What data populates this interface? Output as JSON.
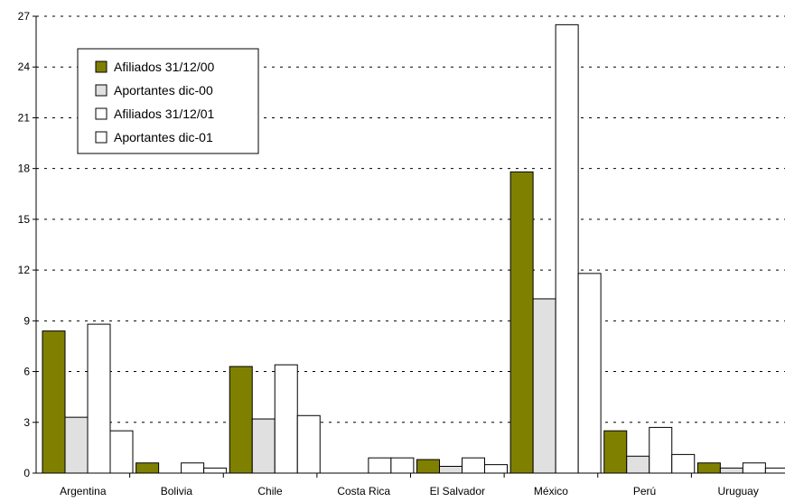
{
  "chart_data": {
    "type": "bar",
    "title": "",
    "xlabel": "",
    "ylabel": "",
    "categories": [
      "Argentina",
      "Bolivia",
      "Chile",
      "Costa Rica",
      "El Salvador",
      "México",
      "Perú",
      "Uruguay"
    ],
    "series": [
      {
        "name": "Afiliados 31/12/00",
        "color": "#808000",
        "values": [
          8.4,
          0.6,
          6.3,
          0,
          0.8,
          17.8,
          2.5,
          0.6
        ]
      },
      {
        "name": "Aportantes dic-00",
        "color": "#e0e0e0",
        "values": [
          3.3,
          0,
          3.2,
          0,
          0.4,
          10.3,
          1.0,
          0.3
        ]
      },
      {
        "name": "Afiliados 31/12/01",
        "color": "#ffffff",
        "values": [
          8.8,
          0.6,
          6.4,
          0.9,
          0.9,
          26.5,
          2.7,
          0.6
        ]
      },
      {
        "name": "Aportantes dic-01",
        "color": "#ffffff",
        "values": [
          2.5,
          0.3,
          3.4,
          0.9,
          0.5,
          11.8,
          1.1,
          0.3
        ]
      }
    ],
    "ylim": [
      0,
      27
    ],
    "yticks": [
      0,
      3,
      6,
      9,
      12,
      15,
      18,
      21,
      24,
      27
    ],
    "grid": "horizontal dashed",
    "legend": "top-left"
  }
}
